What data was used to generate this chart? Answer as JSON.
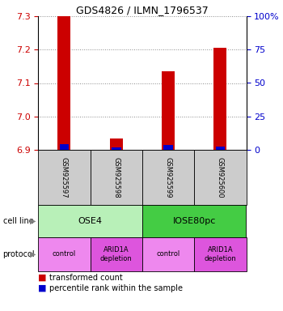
{
  "title": "GDS4826 / ILMN_1796537",
  "samples": [
    "GSM925597",
    "GSM925598",
    "GSM925599",
    "GSM925600"
  ],
  "red_values": [
    7.3,
    6.935,
    7.135,
    7.205
  ],
  "blue_values": [
    6.916,
    6.907,
    6.914,
    6.91
  ],
  "ylim_left": [
    6.9,
    7.3
  ],
  "ylim_right": [
    0,
    100
  ],
  "yticks_left": [
    6.9,
    7.0,
    7.1,
    7.2,
    7.3
  ],
  "yticks_right": [
    0,
    25,
    50,
    75,
    100
  ],
  "cell_lines": [
    {
      "label": "OSE4",
      "color": "#b8f0b8",
      "span": [
        0,
        2
      ]
    },
    {
      "label": "IOSE80pc",
      "color": "#44cc44",
      "span": [
        2,
        4
      ]
    }
  ],
  "protocols": [
    {
      "label": "control",
      "color": "#ee88ee",
      "span": [
        0,
        1
      ]
    },
    {
      "label": "ARID1A\ndepletion",
      "color": "#dd55dd",
      "span": [
        1,
        2
      ]
    },
    {
      "label": "control",
      "color": "#ee88ee",
      "span": [
        2,
        3
      ]
    },
    {
      "label": "ARID1A\ndepletion",
      "color": "#dd55dd",
      "span": [
        3,
        4
      ]
    }
  ],
  "red_color": "#cc0000",
  "blue_color": "#0000cc",
  "bar_width": 0.25,
  "blue_bar_width": 0.18,
  "grid_color": "#888888",
  "background_color": "#ffffff",
  "sample_box_color": "#cccccc",
  "legend_red": "transformed count",
  "legend_blue": "percentile rank within the sample",
  "n_samples": 4
}
